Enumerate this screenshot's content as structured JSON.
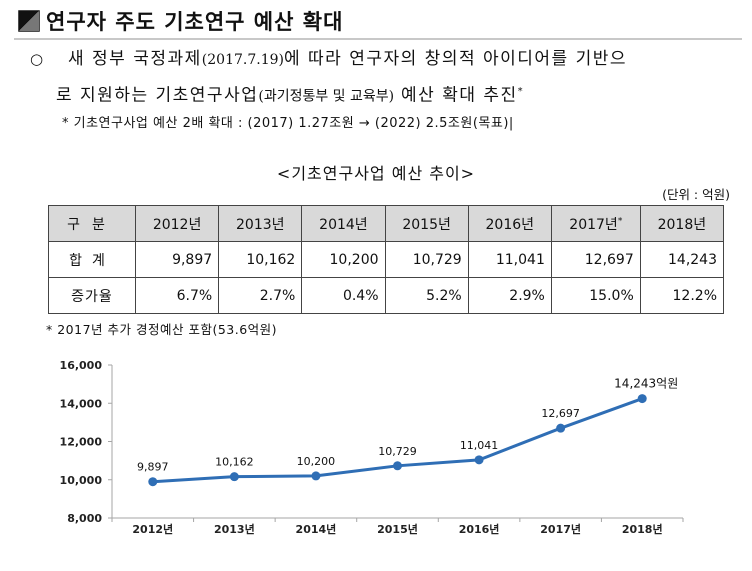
{
  "heading": {
    "title": "연구자 주도 기초연구 예산 확대"
  },
  "paragraph": {
    "bullet": "○",
    "line1_a": "새 정부 국정과제",
    "line1_date": "(2017.7.19)",
    "line1_b": "에 따라 연구자의 창의적 아이디어를 기반으",
    "line2_a": "로 지원하는 기초연구사업",
    "line2_paren": "(과기정통부 및 교육부)",
    "line2_b": " 예산 확대 추진",
    "line2_sup": "*"
  },
  "note": {
    "text": "* 기초연구사업 예산 2배 확대 : (2017) 1.27조원 → (2022) 2.5조원(목표)|"
  },
  "table": {
    "title": "<기초연구사업 예산 추이>",
    "unit": "(단위 : 억원)",
    "header_label": "구분",
    "years": [
      "2012년",
      "2013년",
      "2014년",
      "2015년",
      "2016년",
      "2017년",
      "2018년"
    ],
    "year_marks": [
      "",
      "",
      "",
      "",
      "",
      "*",
      ""
    ],
    "rows": [
      {
        "label": "합계",
        "values": [
          "9,897",
          "10,162",
          "10,200",
          "10,729",
          "11,041",
          "12,697",
          "14,243"
        ]
      },
      {
        "label": "증가율",
        "values": [
          "6.7%",
          "2.7%",
          "0.4%",
          "5.2%",
          "2.9%",
          "15.0%",
          "12.2%"
        ]
      }
    ],
    "footnote": "* 2017년 추가 경정예산 포함(53.6억원)"
  },
  "chart_data": {
    "type": "line",
    "categories": [
      "2012년",
      "2013년",
      "2014년",
      "2015년",
      "2016년",
      "2017년",
      "2018년"
    ],
    "series": [
      {
        "values": [
          9897,
          10162,
          10200,
          10729,
          11041,
          12697,
          14243
        ]
      }
    ],
    "data_labels": [
      "9,897",
      "10,162",
      "10,200",
      "10,729",
      "11,041",
      "12,697",
      "14,243억원"
    ],
    "y_ticks": [
      "8,000",
      "10,000",
      "12,000",
      "14,000",
      "16,000"
    ],
    "y_tick_values": [
      8000,
      10000,
      12000,
      14000,
      16000
    ],
    "ylim": [
      8000,
      16000
    ],
    "grid": false,
    "line_color": "#2f6eb5"
  }
}
